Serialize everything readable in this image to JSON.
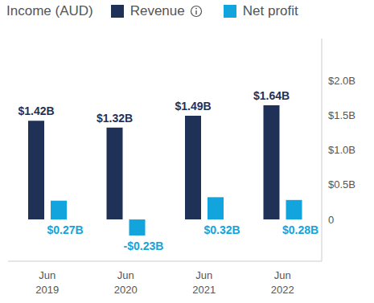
{
  "chart_data": {
    "type": "bar",
    "title": "Income (AUD)",
    "categories": [
      "Jun 2019",
      "Jun 2020",
      "Jun 2021",
      "Jun 2022"
    ],
    "series": [
      {
        "name": "Revenue",
        "color": "#1f3157",
        "values": [
          1.42,
          1.32,
          1.49,
          1.64
        ],
        "value_labels": [
          "$1.42B",
          "$1.32B",
          "$1.49B",
          "$1.64B"
        ]
      },
      {
        "name": "Net profit",
        "color": "#12a4dc",
        "values": [
          0.27,
          -0.23,
          0.32,
          0.28
        ],
        "value_labels": [
          "$0.27B",
          "-$0.23B",
          "$0.32B",
          "$0.28B"
        ]
      }
    ],
    "ylim": [
      -0.6,
      2.6
    ],
    "yticks": [
      0,
      {
        "value": 0.5,
        "label": "$0.5B"
      },
      {
        "value": 1,
        "label": "$1.0B"
      },
      {
        "value": 1.5,
        "label": "$1.5B"
      },
      {
        "value": 2,
        "label": "$2.0B"
      }
    ],
    "grid": false,
    "data_labels": true
  }
}
